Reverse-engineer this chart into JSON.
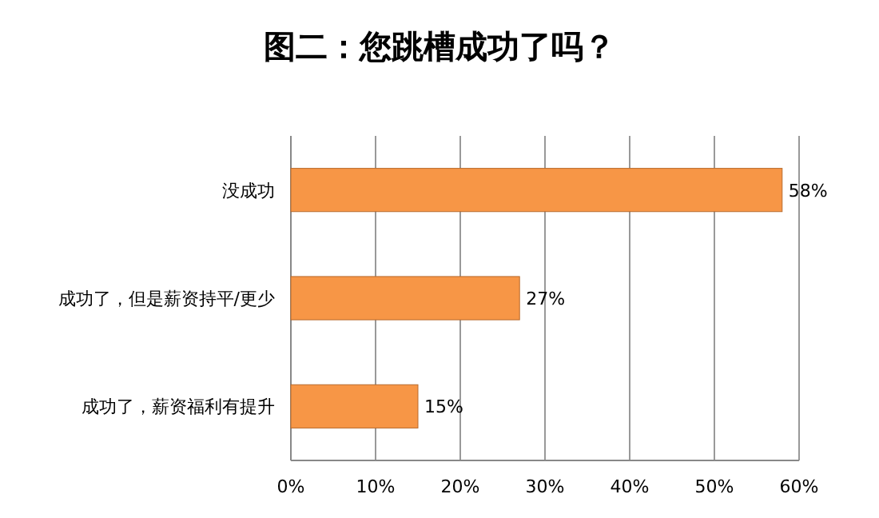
{
  "chart_data": {
    "type": "bar",
    "orientation": "horizontal",
    "title": "图二：您跳槽成功了吗？",
    "categories": [
      "没成功",
      "成功了，但是薪资持平/更少",
      "成功了，薪资福利有提升"
    ],
    "values": [
      58,
      27,
      15
    ],
    "color": "#f79646",
    "value_labels": [
      "58%",
      "27%",
      "15%"
    ],
    "xlim": [
      0,
      60
    ],
    "xticks": [
      {
        "value": 0,
        "label": "0%"
      },
      {
        "value": 10,
        "label": "10%"
      },
      {
        "value": 20,
        "label": "20%"
      },
      {
        "value": 30,
        "label": "30%"
      },
      {
        "value": 40,
        "label": "40%"
      },
      {
        "value": 50,
        "label": "50%"
      },
      {
        "value": 60,
        "label": "60%"
      }
    ],
    "grid": "x"
  }
}
